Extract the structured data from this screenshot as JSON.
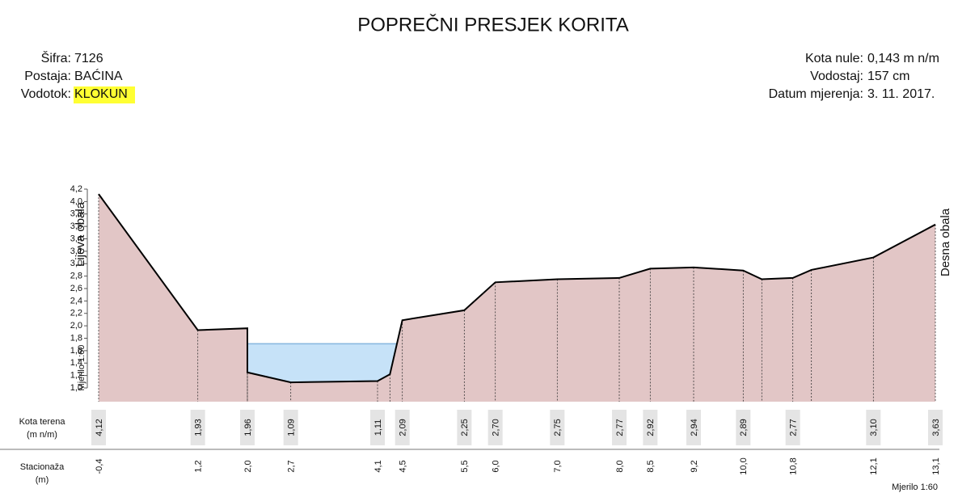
{
  "chart_data": {
    "type": "cross-section",
    "title": "POPREČNI PRESJEK KORITA",
    "info_left": [
      {
        "label": "Šifra:",
        "value": "7126"
      },
      {
        "label": "Postaja:",
        "value": "BAĆINA"
      },
      {
        "label": "Vodotok:",
        "value": "KLOKUN"
      }
    ],
    "info_right": [
      {
        "label": "Kota nule:",
        "value": "0,143 m n/m"
      },
      {
        "label": "Vodostaj:",
        "value": "157 cm"
      },
      {
        "label": "Datum mjerenja:",
        "value": "3. 11. 2017."
      }
    ],
    "left_bank": "Lijeva obala",
    "right_bank": "Desna obala",
    "scale_label": "Mjerilo 1:60",
    "row_ground": [
      "Kota terena",
      "(m n/m)"
    ],
    "row_station": [
      "Stacionaža",
      "(m)"
    ],
    "ylim": [
      1.0,
      4.2
    ],
    "yticks": [
      {
        "value": 1.0,
        "label": "1,0"
      },
      {
        "value": 1.2,
        "label": "1,2"
      },
      {
        "value": 1.4,
        "label": "1,4"
      },
      {
        "value": 1.6,
        "label": "1,6"
      },
      {
        "value": 1.8,
        "label": "1,8"
      },
      {
        "value": 2.0,
        "label": "2,0"
      },
      {
        "value": 2.2,
        "label": "2,2"
      },
      {
        "value": 2.4,
        "label": "2,4"
      },
      {
        "value": 2.6,
        "label": "2,6"
      },
      {
        "value": 2.8,
        "label": "2,8"
      },
      {
        "value": 3.0,
        "label": "3,0"
      },
      {
        "value": 3.2,
        "label": "3,2"
      },
      {
        "value": 3.4,
        "label": "3,4"
      },
      {
        "value": 3.6,
        "label": "3,6"
      },
      {
        "value": 3.8,
        "label": "3,8"
      },
      {
        "value": 4.0,
        "label": "4,0"
      },
      {
        "value": 4.2,
        "label": "4,2"
      }
    ],
    "xlim": [
      -0.4,
      13.1
    ],
    "water_level": 1.71,
    "ground_color": "#e2c6c6",
    "water_color": "#c6e2f8",
    "profile": {
      "x": [
        -0.4,
        1.2,
        2.0,
        2.0,
        2.7,
        4.1,
        4.3,
        4.5,
        5.5,
        6.0,
        7.0,
        8.0,
        8.5,
        9.2,
        10.0,
        10.3,
        10.8,
        11.1,
        12.1,
        13.1
      ],
      "x_labels": [
        "-0,4",
        "1,2",
        "2,0",
        null,
        "2,7",
        "4,1",
        null,
        "4,5",
        "5,5",
        "6,0",
        "7,0",
        "8,0",
        "8,5",
        "9,2",
        "10,0",
        null,
        "10,8",
        null,
        "12,1",
        "13,1"
      ],
      "values": [
        4.12,
        1.93,
        1.96,
        1.25,
        1.09,
        1.11,
        1.22,
        2.09,
        2.25,
        2.7,
        2.75,
        2.77,
        2.92,
        2.94,
        2.89,
        2.75,
        2.77,
        2.9,
        3.1,
        3.63
      ],
      "value_labels": [
        "4,12",
        "1,93",
        "1,96",
        null,
        "1,09",
        "1,11",
        null,
        "2,09",
        "2,25",
        "2,70",
        "2,75",
        "2,77",
        "2,92",
        "2,94",
        "2,89",
        null,
        "2,77",
        null,
        "3,10",
        "3,63"
      ]
    }
  }
}
